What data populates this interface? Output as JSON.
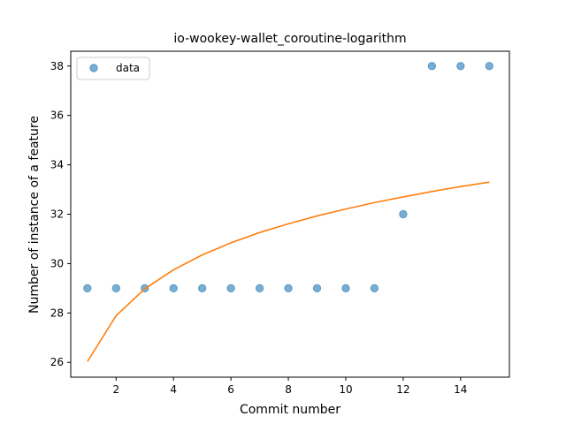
{
  "chart_data": {
    "type": "scatter",
    "title": "io-wookey-wallet_coroutine-logarithm",
    "xlabel": "Commit number",
    "ylabel": "Number of instance of a feature",
    "xlim": [
      0.42,
      15.7
    ],
    "ylim": [
      25.4,
      38.6
    ],
    "xticks": [
      2,
      4,
      6,
      8,
      10,
      12,
      14
    ],
    "yticks": [
      26,
      28,
      30,
      32,
      34,
      36,
      38
    ],
    "grid": false,
    "legend_position": "upper-left",
    "series": [
      {
        "name": "data",
        "kind": "scatter",
        "color": "#1f77b4",
        "x": [
          1,
          2,
          3,
          4,
          5,
          6,
          7,
          8,
          9,
          10,
          11,
          12,
          13,
          14,
          15
        ],
        "y": [
          29,
          29,
          29,
          29,
          29,
          29,
          29,
          29,
          29,
          29,
          29,
          32,
          38,
          38,
          38
        ]
      },
      {
        "kind": "line",
        "color": "#ff7f0e",
        "x": [
          1,
          2,
          3,
          4,
          5,
          6,
          7,
          8,
          9,
          10,
          11,
          12,
          13,
          14,
          15
        ],
        "y": [
          26.03,
          27.89,
          28.98,
          29.75,
          30.35,
          30.84,
          31.26,
          31.61,
          31.93,
          32.21,
          32.47,
          32.7,
          32.92,
          33.12,
          33.3
        ]
      }
    ]
  }
}
